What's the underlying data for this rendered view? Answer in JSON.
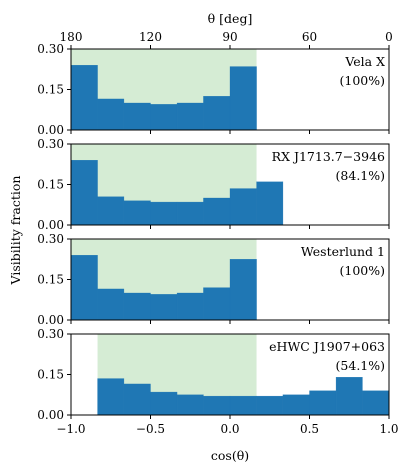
{
  "chart_data": {
    "type": "bar",
    "x_range": [
      -1.0,
      1.0
    ],
    "bin_edges": [
      -1.0,
      -0.833,
      -0.667,
      -0.5,
      -0.333,
      -0.167,
      0.0,
      0.167,
      0.333,
      0.5,
      0.667,
      0.833,
      1.0
    ],
    "ylim": [
      0.0,
      0.3
    ],
    "yticks": [
      "0.00",
      "0.15",
      "0.30"
    ],
    "xticks": [
      "−1.0",
      "−0.5",
      "0.0",
      "0.5",
      "1.0"
    ],
    "xtick_values": [
      -1.0,
      -0.5,
      0.0,
      0.5,
      1.0
    ],
    "top_axis": {
      "label": "θ [deg]",
      "ticks": [
        "180",
        "120",
        "90",
        "60",
        "0"
      ],
      "tick_degrees": [
        180,
        120,
        90,
        60,
        0
      ]
    },
    "xlabel": "cos(θ)",
    "ylabel": "Visibility fraction",
    "bar_color": "#1f77b4",
    "band_color": "#d5ecd4",
    "panels": [
      {
        "name": "Vela X",
        "fraction": "(100%)",
        "visible_band": [
          -1.0,
          0.167
        ],
        "values": [
          0.24,
          0.115,
          0.1,
          0.095,
          0.1,
          0.125,
          0.235,
          null,
          null,
          null,
          null,
          null
        ]
      },
      {
        "name": "RX J1713.7−3946",
        "fraction": "(84.1%)",
        "visible_band": [
          -1.0,
          0.167
        ],
        "values": [
          0.24,
          0.105,
          0.09,
          0.085,
          0.085,
          0.1,
          0.135,
          0.16,
          null,
          null,
          null,
          null
        ]
      },
      {
        "name": "Westerlund 1",
        "fraction": "(100%)",
        "visible_band": [
          -1.0,
          0.167
        ],
        "values": [
          0.24,
          0.115,
          0.1,
          0.095,
          0.1,
          0.12,
          0.225,
          null,
          null,
          null,
          null,
          null
        ]
      },
      {
        "name": "eHWC J1907+063",
        "fraction": "(54.1%)",
        "visible_band": [
          -0.833,
          0.167
        ],
        "values": [
          null,
          0.135,
          0.115,
          0.085,
          0.075,
          0.07,
          0.07,
          0.07,
          0.075,
          0.09,
          0.14,
          0.09
        ]
      }
    ]
  }
}
